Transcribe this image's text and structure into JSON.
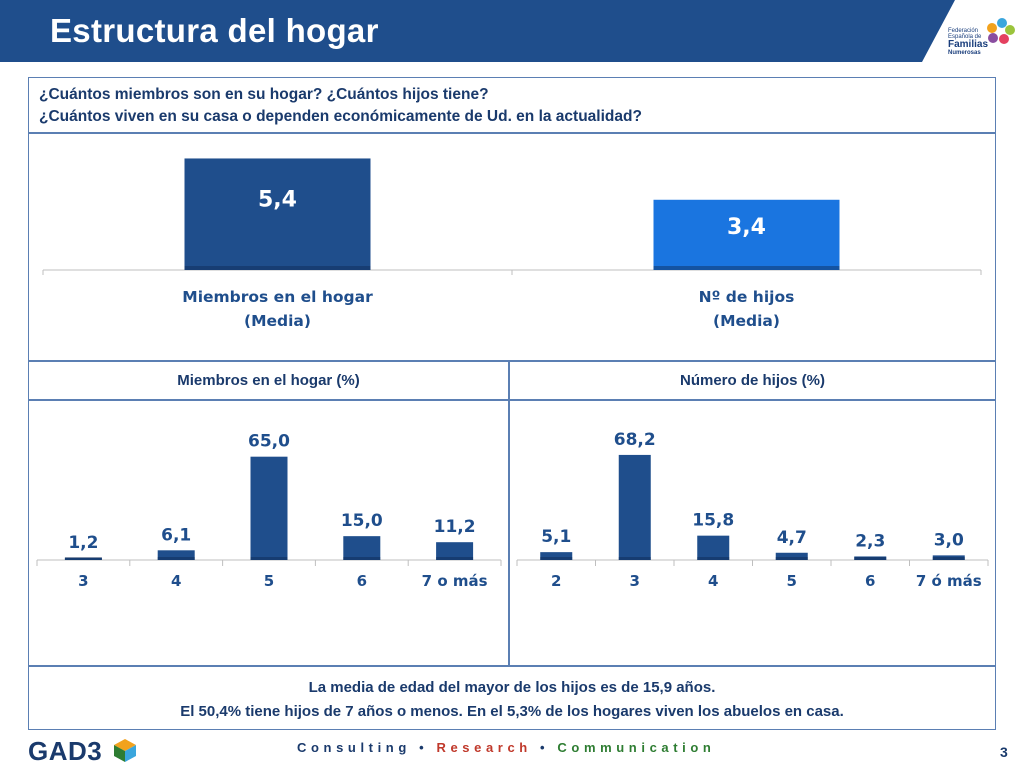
{
  "header": {
    "title": "Estructura del hogar",
    "color": "#1f4e8c",
    "logo": {
      "line1": "Federación",
      "line2": "Española de",
      "line3": "Familias",
      "line4": "Numerosas"
    }
  },
  "question": {
    "line1": "¿Cuántos miembros son en su hogar? ¿Cuántos hijos tiene?",
    "line2": "¿Cuántos viven en su casa o dependen económicamente de Ud. en la actualidad?"
  },
  "sections": {
    "left_title": "Miembros en el hogar (%)",
    "right_title": "Número de hijos (%)"
  },
  "chart_data": [
    {
      "type": "bar",
      "categories": [
        "Miembros en el hogar (Media)",
        "Nº de hijos (Media)"
      ],
      "category_lines": [
        [
          "Miembros en el hogar",
          "(Media)"
        ],
        [
          "Nº de hijos",
          "(Media)"
        ]
      ],
      "values": [
        5.4,
        3.4
      ],
      "labels": [
        "5,4",
        "3,4"
      ],
      "colors": [
        "#1f4e8c",
        "#1a75e0"
      ],
      "ylim": [
        0,
        6.1
      ]
    },
    {
      "type": "bar",
      "title": "Miembros en el hogar (%)",
      "categories": [
        "3",
        "4",
        "5",
        "6",
        "7 o más"
      ],
      "values": [
        1.2,
        6.1,
        65.0,
        15.0,
        11.2
      ],
      "labels": [
        "1,2",
        "6,1",
        "65,0",
        "15,0",
        "11,2"
      ],
      "color": "#1f4e8c",
      "ylim": [
        0,
        95
      ]
    },
    {
      "type": "bar",
      "title": "Número de hijos (%)",
      "categories": [
        "2",
        "3",
        "4",
        "5",
        "6",
        "7 ó más"
      ],
      "values": [
        5.1,
        68.2,
        15.8,
        4.7,
        2.3,
        3.0
      ],
      "labels": [
        "5,1",
        "68,2",
        "15,8",
        "4,7",
        "2,3",
        "3,0"
      ],
      "color": "#1f4e8c",
      "ylim": [
        0,
        98
      ]
    }
  ],
  "footer": {
    "line1": "La media de edad del mayor de los hijos es de 15,9 años.",
    "line2": "El 50,4% tiene hijos de 7 años o menos. En el 5,3% de los hogares viven los abuelos en casa."
  },
  "brand": {
    "name": "GAD3",
    "tag1": "Consulting",
    "sep1": "•",
    "tag2": "Research",
    "sep2": "•",
    "tag3": "Communication",
    "tag_color_1": "#1a3a6c",
    "tag_color_2": "#c0392b",
    "tag_color_3": "#2e7d32"
  },
  "page_number": "3"
}
